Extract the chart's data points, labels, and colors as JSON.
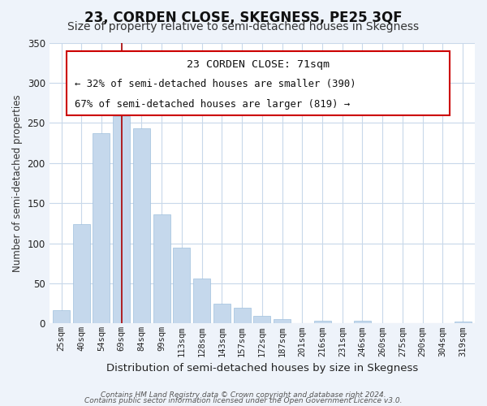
{
  "title": "23, CORDEN CLOSE, SKEGNESS, PE25 3QF",
  "subtitle": "Size of property relative to semi-detached houses in Skegness",
  "bar_labels": [
    "25sqm",
    "40sqm",
    "54sqm",
    "69sqm",
    "84sqm",
    "99sqm",
    "113sqm",
    "128sqm",
    "143sqm",
    "157sqm",
    "172sqm",
    "187sqm",
    "201sqm",
    "216sqm",
    "231sqm",
    "246sqm",
    "260sqm",
    "275sqm",
    "290sqm",
    "304sqm",
    "319sqm"
  ],
  "bar_values": [
    17,
    124,
    237,
    258,
    243,
    136,
    95,
    56,
    25,
    20,
    10,
    5,
    0,
    3,
    0,
    3,
    0,
    0,
    0,
    0,
    2
  ],
  "bar_color": "#c5d8ec",
  "bar_edgecolor": "#a0c0de",
  "highlight_index": 3,
  "vline_color": "#aa0000",
  "ylim": [
    0,
    350
  ],
  "yticks": [
    0,
    50,
    100,
    150,
    200,
    250,
    300,
    350
  ],
  "ylabel": "Number of semi-detached properties",
  "xlabel": "Distribution of semi-detached houses by size in Skegness",
  "annotation_title": "23 CORDEN CLOSE: 71sqm",
  "annotation_line1": "← 32% of semi-detached houses are smaller (390)",
  "annotation_line2": "67% of semi-detached houses are larger (819) →",
  "footer1": "Contains HM Land Registry data © Crown copyright and database right 2024.",
  "footer2": "Contains public sector information licensed under the Open Government Licence v3.0.",
  "bg_color": "#eef3fa",
  "plot_bg_color": "#ffffff",
  "grid_color": "#c8d8ea",
  "box_edge_color": "#cc0000",
  "title_fontsize": 12,
  "subtitle_fontsize": 10
}
